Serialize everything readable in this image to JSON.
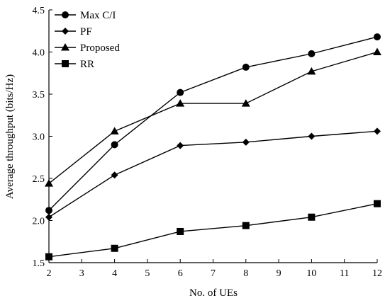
{
  "chart_data": {
    "type": "line",
    "xlabel": "No. of UEs",
    "ylabel": "Average throughput (bits/Hz)",
    "xlim": [
      2,
      12
    ],
    "ylim": [
      1.5,
      4.5
    ],
    "x_ticks": [
      2,
      3,
      4,
      5,
      6,
      7,
      8,
      9,
      10,
      11,
      12
    ],
    "y_ticks": [
      1.5,
      2.0,
      2.5,
      3.0,
      3.5,
      4.0,
      4.5
    ],
    "y_tick_labels": [
      "1.5",
      "2.0",
      "2.5",
      "3.0",
      "3.5",
      "4.0",
      "4.5"
    ],
    "grid": false,
    "legend_position": "top-left",
    "series": [
      {
        "name": "Max C/I",
        "marker": "circle",
        "x": [
          2,
          4,
          6,
          8,
          10,
          12
        ],
        "y": [
          2.12,
          2.9,
          3.52,
          3.82,
          3.98,
          4.18
        ]
      },
      {
        "name": "PF",
        "marker": "diamond",
        "x": [
          2,
          4,
          6,
          8,
          10,
          12
        ],
        "y": [
          2.04,
          2.54,
          2.89,
          2.93,
          3.0,
          3.06
        ]
      },
      {
        "name": "Proposed",
        "marker": "triangle",
        "x": [
          2,
          4,
          6,
          8,
          10,
          12
        ],
        "y": [
          2.44,
          3.06,
          3.39,
          3.39,
          3.77,
          4.0
        ]
      },
      {
        "name": "RR",
        "marker": "square",
        "x": [
          2,
          4,
          6,
          8,
          10,
          12
        ],
        "y": [
          1.57,
          1.67,
          1.87,
          1.94,
          2.04,
          2.2
        ]
      }
    ]
  }
}
